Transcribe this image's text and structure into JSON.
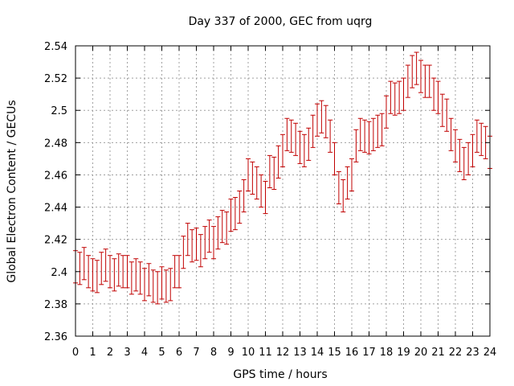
{
  "chart_data": {
    "type": "line",
    "title": "Day 337 of 2000, GEC from uqrg",
    "xlabel": "GPS time / hours",
    "ylabel": "Global Electron Content / GECUs",
    "xlim": [
      0,
      24
    ],
    "ylim": [
      2.36,
      2.54
    ],
    "x_ticks": [
      "0",
      "1",
      "2",
      "3",
      "4",
      "5",
      "6",
      "7",
      "8",
      "9",
      "10",
      "11",
      "12",
      "13",
      "14",
      "15",
      "16",
      "17",
      "18",
      "19",
      "20",
      "21",
      "22",
      "23",
      "24"
    ],
    "y_ticks": [
      "2.36",
      "2.38",
      "2.4",
      "2.42",
      "2.44",
      "2.46",
      "2.48",
      "2.5",
      "2.52",
      "2.54"
    ],
    "grid": true,
    "series_color": "#c00000",
    "error": 0.01,
    "x": [
      0,
      0.25,
      0.5,
      0.75,
      1,
      1.25,
      1.5,
      1.75,
      2,
      2.25,
      2.5,
      2.75,
      3,
      3.25,
      3.5,
      3.75,
      4,
      4.25,
      4.5,
      4.75,
      5,
      5.25,
      5.5,
      5.75,
      6,
      6.25,
      6.5,
      6.75,
      7,
      7.25,
      7.5,
      7.75,
      8,
      8.25,
      8.5,
      8.75,
      9,
      9.25,
      9.5,
      9.75,
      10,
      10.25,
      10.5,
      10.75,
      11,
      11.25,
      11.5,
      11.75,
      12,
      12.25,
      12.5,
      12.75,
      13,
      13.25,
      13.5,
      13.75,
      14,
      14.25,
      14.5,
      14.75,
      15,
      15.25,
      15.5,
      15.75,
      16,
      16.25,
      16.5,
      16.75,
      17,
      17.25,
      17.5,
      17.75,
      18,
      18.25,
      18.5,
      18.75,
      19,
      19.25,
      19.5,
      19.75,
      20,
      20.25,
      20.5,
      20.75,
      21,
      21.25,
      21.5,
      21.75,
      22,
      22.25,
      22.5,
      22.75,
      23,
      23.25,
      23.5,
      23.75,
      24
    ],
    "y": [
      2.403,
      2.402,
      2.405,
      2.4,
      2.398,
      2.397,
      2.402,
      2.404,
      2.4,
      2.398,
      2.401,
      2.4,
      2.4,
      2.396,
      2.398,
      2.396,
      2.392,
      2.395,
      2.391,
      2.39,
      2.393,
      2.391,
      2.392,
      2.4,
      2.4,
      2.412,
      2.42,
      2.416,
      2.417,
      2.413,
      2.418,
      2.422,
      2.418,
      2.424,
      2.428,
      2.427,
      2.435,
      2.436,
      2.44,
      2.447,
      2.46,
      2.458,
      2.455,
      2.45,
      2.446,
      2.462,
      2.461,
      2.468,
      2.475,
      2.485,
      2.484,
      2.482,
      2.477,
      2.475,
      2.479,
      2.487,
      2.494,
      2.496,
      2.493,
      2.484,
      2.47,
      2.452,
      2.447,
      2.455,
      2.46,
      2.478,
      2.485,
      2.484,
      2.483,
      2.485,
      2.487,
      2.488,
      2.499,
      2.508,
      2.507,
      2.508,
      2.51,
      2.518,
      2.524,
      2.526,
      2.521,
      2.518,
      2.518,
      2.51,
      2.508,
      2.5,
      2.497,
      2.485,
      2.478,
      2.472,
      2.467,
      2.47,
      2.475,
      2.484,
      2.482,
      2.48,
      2.474
    ]
  }
}
